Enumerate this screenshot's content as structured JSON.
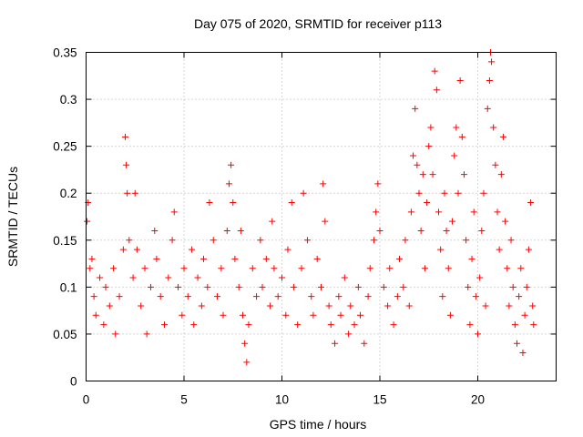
{
  "chart_data": {
    "type": "scatter",
    "title": "Day 075 of 2020, SRMTID for receiver p113",
    "xlabel": "GPS time / hours",
    "ylabel": "SRMTID / TECUs",
    "xlim": [
      0,
      24
    ],
    "ylim": [
      0,
      0.35
    ],
    "xticks": [
      0,
      5,
      10,
      15,
      20
    ],
    "xtick_labels": [
      "0",
      "5",
      "10",
      "15",
      "20"
    ],
    "yticks": [
      0,
      0.05,
      0.1,
      0.15,
      0.2,
      0.25,
      0.3,
      0.35
    ],
    "ytick_labels": [
      "0",
      "0.05",
      "0.1",
      "0.15",
      "0.2",
      "0.25",
      "0.3",
      "0.35"
    ],
    "grid": true,
    "marker": "plus",
    "color": "#ff0000",
    "series": [
      {
        "name": "SRMTID",
        "points": [
          [
            0.05,
            0.17
          ],
          [
            0.1,
            0.19
          ],
          [
            0.2,
            0.12
          ],
          [
            0.3,
            0.13
          ],
          [
            0.4,
            0.09
          ],
          [
            0.5,
            0.07
          ],
          [
            0.7,
            0.11
          ],
          [
            0.9,
            0.06
          ],
          [
            1.0,
            0.1
          ],
          [
            1.2,
            0.08
          ],
          [
            1.4,
            0.12
          ],
          [
            1.5,
            0.05
          ],
          [
            1.7,
            0.09
          ],
          [
            1.9,
            0.14
          ],
          [
            2.0,
            0.26
          ],
          [
            2.05,
            0.23
          ],
          [
            2.1,
            0.2
          ],
          [
            2.2,
            0.15
          ],
          [
            2.4,
            0.11
          ],
          [
            2.5,
            0.2
          ],
          [
            2.6,
            0.14
          ],
          [
            2.8,
            0.08
          ],
          [
            3.0,
            0.12
          ],
          [
            3.1,
            0.05
          ],
          [
            3.3,
            0.1
          ],
          [
            3.5,
            0.16
          ],
          [
            3.6,
            0.13
          ],
          [
            3.8,
            0.09
          ],
          [
            4.0,
            0.06
          ],
          [
            4.2,
            0.11
          ],
          [
            4.4,
            0.15
          ],
          [
            4.5,
            0.18
          ],
          [
            4.7,
            0.1
          ],
          [
            4.9,
            0.07
          ],
          [
            5.0,
            0.12
          ],
          [
            5.2,
            0.09
          ],
          [
            5.4,
            0.14
          ],
          [
            5.5,
            0.06
          ],
          [
            5.7,
            0.11
          ],
          [
            5.9,
            0.08
          ],
          [
            6.0,
            0.13
          ],
          [
            6.2,
            0.1
          ],
          [
            6.3,
            0.19
          ],
          [
            6.5,
            0.15
          ],
          [
            6.7,
            0.09
          ],
          [
            6.9,
            0.12
          ],
          [
            7.0,
            0.07
          ],
          [
            7.2,
            0.16
          ],
          [
            7.3,
            0.21
          ],
          [
            7.4,
            0.23
          ],
          [
            7.5,
            0.19
          ],
          [
            7.6,
            0.13
          ],
          [
            7.8,
            0.1
          ],
          [
            7.9,
            0.16
          ],
          [
            8.0,
            0.07
          ],
          [
            8.1,
            0.04
          ],
          [
            8.2,
            0.02
          ],
          [
            8.3,
            0.06
          ],
          [
            8.5,
            0.12
          ],
          [
            8.7,
            0.09
          ],
          [
            8.9,
            0.15
          ],
          [
            9.0,
            0.1
          ],
          [
            9.2,
            0.13
          ],
          [
            9.4,
            0.08
          ],
          [
            9.5,
            0.17
          ],
          [
            9.6,
            0.12
          ],
          [
            9.8,
            0.09
          ],
          [
            10.0,
            0.11
          ],
          [
            10.2,
            0.07
          ],
          [
            10.3,
            0.14
          ],
          [
            10.5,
            0.19
          ],
          [
            10.6,
            0.1
          ],
          [
            10.8,
            0.06
          ],
          [
            11.0,
            0.12
          ],
          [
            11.1,
            0.2
          ],
          [
            11.3,
            0.15
          ],
          [
            11.5,
            0.09
          ],
          [
            11.6,
            0.07
          ],
          [
            11.8,
            0.13
          ],
          [
            12.0,
            0.1
          ],
          [
            12.1,
            0.21
          ],
          [
            12.2,
            0.17
          ],
          [
            12.4,
            0.08
          ],
          [
            12.5,
            0.06
          ],
          [
            12.7,
            0.04
          ],
          [
            12.9,
            0.09
          ],
          [
            13.0,
            0.07
          ],
          [
            13.2,
            0.11
          ],
          [
            13.4,
            0.05
          ],
          [
            13.5,
            0.08
          ],
          [
            13.7,
            0.06
          ],
          [
            13.9,
            0.1
          ],
          [
            14.0,
            0.07
          ],
          [
            14.2,
            0.04
          ],
          [
            14.4,
            0.09
          ],
          [
            14.5,
            0.12
          ],
          [
            14.7,
            0.15
          ],
          [
            14.8,
            0.18
          ],
          [
            14.9,
            0.21
          ],
          [
            15.0,
            0.16
          ],
          [
            15.2,
            0.1
          ],
          [
            15.4,
            0.08
          ],
          [
            15.5,
            0.12
          ],
          [
            15.7,
            0.06
          ],
          [
            15.9,
            0.09
          ],
          [
            16.0,
            0.13
          ],
          [
            16.2,
            0.1
          ],
          [
            16.3,
            0.15
          ],
          [
            16.5,
            0.08
          ],
          [
            16.6,
            0.18
          ],
          [
            16.7,
            0.24
          ],
          [
            16.8,
            0.29
          ],
          [
            16.9,
            0.23
          ],
          [
            17.0,
            0.2
          ],
          [
            17.1,
            0.16
          ],
          [
            17.2,
            0.22
          ],
          [
            17.3,
            0.12
          ],
          [
            17.4,
            0.19
          ],
          [
            17.5,
            0.25
          ],
          [
            17.6,
            0.27
          ],
          [
            17.7,
            0.22
          ],
          [
            17.8,
            0.33
          ],
          [
            17.9,
            0.31
          ],
          [
            18.0,
            0.18
          ],
          [
            18.1,
            0.14
          ],
          [
            18.2,
            0.09
          ],
          [
            18.3,
            0.2
          ],
          [
            18.4,
            0.16
          ],
          [
            18.5,
            0.12
          ],
          [
            18.6,
            0.07
          ],
          [
            18.7,
            0.17
          ],
          [
            18.8,
            0.24
          ],
          [
            18.9,
            0.27
          ],
          [
            19.0,
            0.2
          ],
          [
            19.1,
            0.32
          ],
          [
            19.2,
            0.26
          ],
          [
            19.3,
            0.22
          ],
          [
            19.4,
            0.15
          ],
          [
            19.5,
            0.1
          ],
          [
            19.6,
            0.06
          ],
          [
            19.7,
            0.13
          ],
          [
            19.8,
            0.18
          ],
          [
            19.9,
            0.09
          ],
          [
            20.0,
            0.05
          ],
          [
            20.1,
            0.11
          ],
          [
            20.2,
            0.16
          ],
          [
            20.3,
            0.2
          ],
          [
            20.4,
            0.08
          ],
          [
            20.5,
            0.29
          ],
          [
            20.6,
            0.32
          ],
          [
            20.65,
            0.35
          ],
          [
            20.7,
            0.34
          ],
          [
            20.8,
            0.27
          ],
          [
            20.9,
            0.23
          ],
          [
            21.0,
            0.18
          ],
          [
            21.1,
            0.14
          ],
          [
            21.2,
            0.22
          ],
          [
            21.3,
            0.26
          ],
          [
            21.4,
            0.17
          ],
          [
            21.5,
            0.12
          ],
          [
            21.6,
            0.08
          ],
          [
            21.7,
            0.15
          ],
          [
            21.8,
            0.1
          ],
          [
            21.9,
            0.06
          ],
          [
            22.0,
            0.04
          ],
          [
            22.1,
            0.09
          ],
          [
            22.2,
            0.12
          ],
          [
            22.3,
            0.03
          ],
          [
            22.4,
            0.07
          ],
          [
            22.5,
            0.1
          ],
          [
            22.6,
            0.14
          ],
          [
            22.7,
            0.19
          ],
          [
            22.8,
            0.08
          ],
          [
            22.85,
            0.06
          ]
        ]
      }
    ]
  }
}
